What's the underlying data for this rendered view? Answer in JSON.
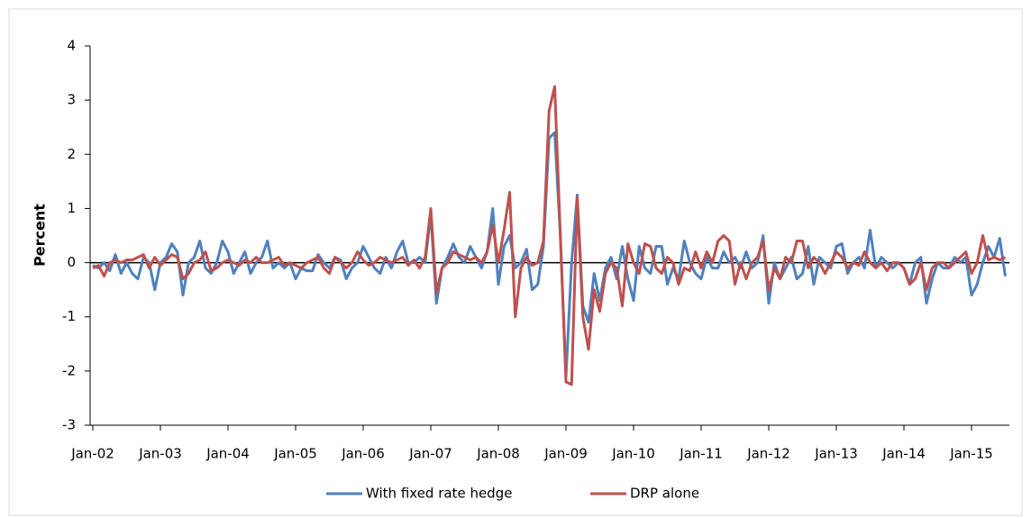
{
  "chart_data": {
    "type": "line",
    "y_label": "Percent",
    "categories": [
      "Jan-02",
      null,
      null,
      null,
      null,
      null,
      null,
      null,
      null,
      null,
      null,
      null,
      "Jan-03",
      null,
      null,
      null,
      null,
      null,
      null,
      null,
      null,
      null,
      null,
      null,
      "Jan-04",
      null,
      null,
      null,
      null,
      null,
      null,
      null,
      null,
      null,
      null,
      null,
      "Jan-05",
      null,
      null,
      null,
      null,
      null,
      null,
      null,
      null,
      null,
      null,
      null,
      "Jan-06",
      null,
      null,
      null,
      null,
      null,
      null,
      null,
      null,
      null,
      null,
      null,
      "Jan-07",
      null,
      null,
      null,
      null,
      null,
      null,
      null,
      null,
      null,
      null,
      null,
      "Jan-08",
      null,
      null,
      null,
      null,
      null,
      null,
      null,
      null,
      null,
      null,
      null,
      "Jan-09",
      null,
      null,
      null,
      null,
      null,
      null,
      null,
      null,
      null,
      null,
      null,
      "Jan-10",
      null,
      null,
      null,
      null,
      null,
      null,
      null,
      null,
      null,
      null,
      null,
      "Jan-11",
      null,
      null,
      null,
      null,
      null,
      null,
      null,
      null,
      null,
      null,
      null,
      "Jan-12",
      null,
      null,
      null,
      null,
      null,
      null,
      null,
      null,
      null,
      null,
      null,
      "Jan-13",
      null,
      null,
      null,
      null,
      null,
      null,
      null,
      null,
      null,
      null,
      null,
      "Jan-14",
      null,
      null,
      null,
      null,
      null,
      null,
      null,
      null,
      null,
      null,
      null,
      "Jan-15",
      null,
      null,
      null,
      null,
      null,
      null
    ],
    "series": [
      {
        "name": "With fixed rate hedge",
        "color": "#4f81bd",
        "values": [
          -0.05,
          -0.1,
          0.0,
          -0.15,
          0.15,
          -0.2,
          0.0,
          -0.2,
          -0.3,
          0.1,
          0.0,
          -0.5,
          0.0,
          0.1,
          0.35,
          0.2,
          -0.6,
          0.0,
          0.1,
          0.4,
          -0.1,
          -0.2,
          0.0,
          0.4,
          0.2,
          -0.2,
          0.0,
          0.2,
          -0.2,
          0.0,
          0.1,
          0.4,
          -0.1,
          0.0,
          -0.1,
          0.0,
          -0.3,
          -0.1,
          -0.15,
          -0.15,
          0.15,
          0.0,
          -0.1,
          0.1,
          0.05,
          -0.3,
          -0.1,
          0.0,
          0.3,
          0.1,
          -0.1,
          -0.2,
          0.1,
          -0.1,
          0.2,
          0.4,
          0.0,
          0.0,
          0.1,
          0.0,
          0.9,
          -0.75,
          -0.1,
          0.1,
          0.35,
          0.1,
          0.0,
          0.3,
          0.1,
          -0.1,
          0.2,
          1.0,
          -0.4,
          0.3,
          0.5,
          -0.1,
          0.0,
          0.25,
          -0.5,
          -0.4,
          0.3,
          2.3,
          2.4,
          0.5,
          -2.1,
          0.0,
          1.25,
          -0.8,
          -1.1,
          -0.2,
          -0.7,
          -0.1,
          0.1,
          -0.3,
          0.3,
          -0.3,
          -0.7,
          0.3,
          -0.1,
          -0.2,
          0.3,
          0.3,
          -0.4,
          -0.1,
          -0.3,
          0.4,
          0.0,
          -0.2,
          -0.3,
          0.1,
          -0.1,
          -0.1,
          0.2,
          0.0,
          0.1,
          -0.1,
          0.2,
          -0.1,
          0.0,
          0.5,
          -0.75,
          0.0,
          -0.3,
          -0.1,
          0.1,
          -0.3,
          -0.2,
          0.3,
          -0.4,
          0.1,
          0.0,
          -0.1,
          0.3,
          0.35,
          -0.2,
          0.0,
          0.1,
          -0.1,
          0.6,
          -0.1,
          0.1,
          0.0,
          -0.1,
          0.0,
          -0.1,
          -0.4,
          0.0,
          0.1,
          -0.75,
          -0.3,
          0.0,
          -0.1,
          -0.1,
          0.1,
          0.0,
          0.1,
          -0.6,
          -0.4,
          0.0,
          0.3,
          0.1,
          0.45,
          -0.25
        ]
      },
      {
        "name": "DRP alone",
        "color": "#c0504d",
        "values": [
          -0.1,
          -0.05,
          -0.25,
          0.0,
          0.05,
          0.0,
          0.05,
          0.05,
          0.1,
          0.15,
          -0.1,
          0.1,
          -0.05,
          0.05,
          0.15,
          0.1,
          -0.3,
          -0.2,
          0.0,
          0.05,
          0.2,
          -0.15,
          -0.1,
          0.0,
          0.05,
          0.0,
          -0.05,
          0.05,
          0.0,
          0.1,
          0.0,
          0.0,
          0.05,
          0.1,
          -0.05,
          0.0,
          -0.05,
          -0.1,
          0.0,
          0.05,
          0.1,
          -0.1,
          -0.2,
          0.1,
          0.0,
          -0.1,
          0.0,
          0.2,
          0.05,
          -0.05,
          0.0,
          0.1,
          0.05,
          0.0,
          0.05,
          0.1,
          -0.05,
          0.05,
          -0.1,
          0.1,
          1.0,
          -0.55,
          -0.1,
          0.0,
          0.2,
          0.15,
          0.1,
          0.05,
          0.1,
          0.0,
          0.2,
          0.7,
          0.0,
          0.6,
          1.3,
          -1.0,
          -0.1,
          0.1,
          -0.05,
          0.0,
          0.4,
          2.8,
          3.25,
          0.5,
          -2.2,
          -2.25,
          1.2,
          -1.0,
          -1.6,
          -0.5,
          -0.9,
          -0.2,
          0.0,
          -0.1,
          -0.8,
          0.35,
          0.0,
          -0.2,
          0.35,
          0.3,
          -0.1,
          -0.2,
          0.1,
          0.0,
          -0.4,
          -0.1,
          -0.15,
          0.2,
          -0.1,
          0.2,
          0.0,
          0.4,
          0.5,
          0.4,
          -0.4,
          0.0,
          -0.3,
          0.0,
          0.1,
          0.4,
          -0.5,
          -0.1,
          -0.3,
          0.1,
          0.0,
          0.4,
          0.4,
          -0.1,
          0.1,
          0.0,
          -0.2,
          0.0,
          0.2,
          0.1,
          -0.1,
          0.0,
          -0.05,
          0.2,
          0.0,
          -0.1,
          0.0,
          -0.15,
          0.0,
          0.0,
          -0.1,
          -0.4,
          -0.3,
          0.0,
          -0.5,
          -0.1,
          0.0,
          0.0,
          -0.1,
          0.0,
          0.1,
          0.2,
          -0.2,
          0.0,
          0.5,
          0.05,
          0.1,
          0.05,
          0.1
        ]
      }
    ],
    "ylim": [
      -3,
      4
    ],
    "yticks": [
      -3,
      -2,
      -1,
      0,
      1,
      2,
      3,
      4
    ]
  }
}
